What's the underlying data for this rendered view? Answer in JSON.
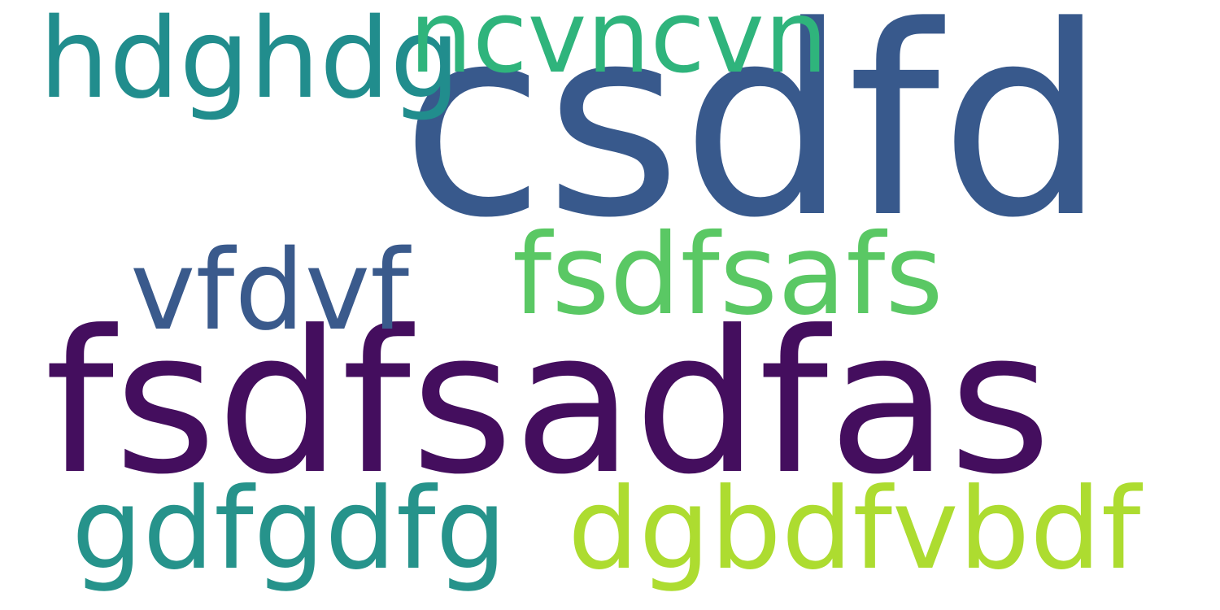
{
  "words": [
    {
      "text": "csdfd",
      "color": "#38598c"
    },
    {
      "text": "fsdfsadfas",
      "color": "#440e5e"
    },
    {
      "text": "dgbdfvbdf",
      "color": "#addc30"
    },
    {
      "text": "fsdfsafs",
      "color": "#5ac864"
    },
    {
      "text": "hdghdg",
      "color": "#218d8d"
    },
    {
      "text": "ncvncvn",
      "color": "#2fb47c"
    },
    {
      "text": "vfdvf",
      "color": "#3a5a8c"
    },
    {
      "text": "gdfgdfg",
      "color": "#26938b"
    }
  ]
}
